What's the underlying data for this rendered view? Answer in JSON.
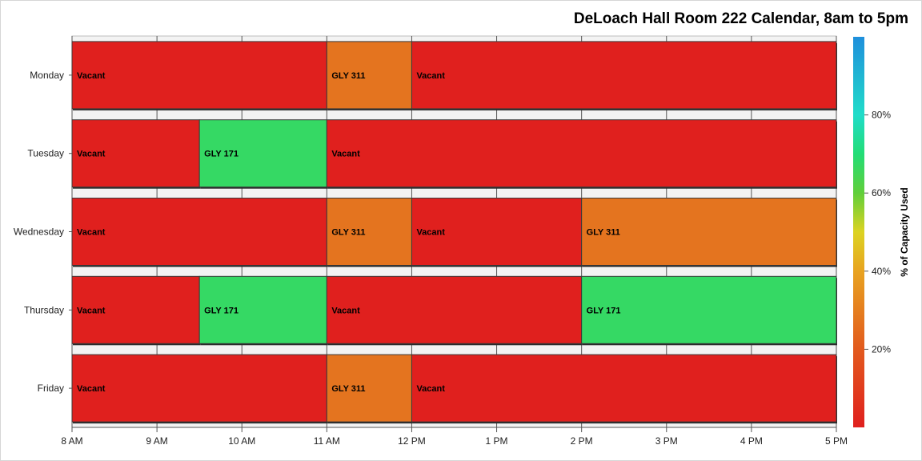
{
  "chart_data": {
    "type": "bar",
    "orientation": "horizontal-timeline",
    "title": "DeLoach Hall Room 222 Calendar, 8am to 5pm",
    "xlabel": "",
    "ylabel": "",
    "x_ticks": [
      "8 AM",
      "9 AM",
      "10 AM",
      "11 AM",
      "12 PM",
      "1 PM",
      "2 PM",
      "3 PM",
      "4 PM",
      "5 PM"
    ],
    "xlim": [
      8,
      17
    ],
    "grid": true,
    "categories": [
      "Monday",
      "Tuesday",
      "Wednesday",
      "Thursday",
      "Friday"
    ],
    "segments": [
      {
        "day": "Monday",
        "start": 8,
        "end": 11,
        "label": "Vacant",
        "capacity_pct": 0
      },
      {
        "day": "Monday",
        "start": 11,
        "end": 12,
        "label": "GLY 311",
        "capacity_pct": 27
      },
      {
        "day": "Monday",
        "start": 12,
        "end": 17,
        "label": "Vacant",
        "capacity_pct": 0
      },
      {
        "day": "Tuesday",
        "start": 8,
        "end": 9.5,
        "label": "Vacant",
        "capacity_pct": 0
      },
      {
        "day": "Tuesday",
        "start": 9.5,
        "end": 11,
        "label": "GLY 171",
        "capacity_pct": 67
      },
      {
        "day": "Tuesday",
        "start": 11,
        "end": 17,
        "label": "Vacant",
        "capacity_pct": 0
      },
      {
        "day": "Wednesday",
        "start": 8,
        "end": 11,
        "label": "Vacant",
        "capacity_pct": 0
      },
      {
        "day": "Wednesday",
        "start": 11,
        "end": 12,
        "label": "GLY 311",
        "capacity_pct": 27
      },
      {
        "day": "Wednesday",
        "start": 12,
        "end": 14,
        "label": "Vacant",
        "capacity_pct": 0
      },
      {
        "day": "Wednesday",
        "start": 14,
        "end": 17,
        "label": "GLY 311",
        "capacity_pct": 27
      },
      {
        "day": "Thursday",
        "start": 8,
        "end": 9.5,
        "label": "Vacant",
        "capacity_pct": 0
      },
      {
        "day": "Thursday",
        "start": 9.5,
        "end": 11,
        "label": "GLY 171",
        "capacity_pct": 67
      },
      {
        "day": "Thursday",
        "start": 11,
        "end": 14,
        "label": "Vacant",
        "capacity_pct": 0
      },
      {
        "day": "Thursday",
        "start": 14,
        "end": 17,
        "label": "GLY 171",
        "capacity_pct": 67
      },
      {
        "day": "Friday",
        "start": 8,
        "end": 11,
        "label": "Vacant",
        "capacity_pct": 0
      },
      {
        "day": "Friday",
        "start": 11,
        "end": 12,
        "label": "GLY 311",
        "capacity_pct": 27
      },
      {
        "day": "Friday",
        "start": 12,
        "end": 17,
        "label": "Vacant",
        "capacity_pct": 0
      }
    ],
    "colorbar": {
      "label": "% of Capacity Used",
      "range": [
        0,
        100
      ],
      "ticks": [
        {
          "value": 20,
          "label": "20%"
        },
        {
          "value": 40,
          "label": "40%"
        },
        {
          "value": 60,
          "label": "60%"
        },
        {
          "value": 80,
          "label": "80%"
        }
      ],
      "gradient": [
        {
          "value": 0,
          "color": "#e0201e"
        },
        {
          "value": 20,
          "color": "#e25a1e"
        },
        {
          "value": 40,
          "color": "#e8a320"
        },
        {
          "value": 50,
          "color": "#dcd322"
        },
        {
          "value": 60,
          "color": "#60cf3a"
        },
        {
          "value": 70,
          "color": "#22dd76"
        },
        {
          "value": 80,
          "color": "#20dcc9"
        },
        {
          "value": 100,
          "color": "#1f8fdc"
        }
      ]
    }
  }
}
